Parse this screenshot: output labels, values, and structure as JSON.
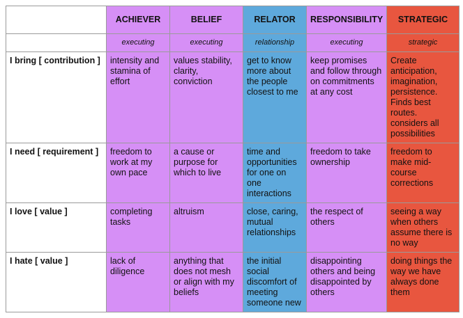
{
  "table": {
    "columns": [
      "ACHIEVER",
      "BELIEF",
      "RELATOR",
      "RESPONSIBILITY",
      "STRATEGIC"
    ],
    "categories": [
      "executing",
      "executing",
      "relationship",
      "executing",
      "strategic"
    ],
    "rows": [
      {
        "label": "I bring [ contribution ]",
        "cells": [
          "intensity and stamina of effort",
          "values stability, clarity, conviction",
          "get to know more about the people closest to me",
          "keep promises and follow through on commitments at any cost",
          "Create anticipation, imagination, persistence. Finds best routes. considers all possibilities"
        ]
      },
      {
        "label": "I need [ requirement ]",
        "cells": [
          "freedom to work at my own pace",
          "a cause or purpose for which to live",
          "time and opportunities for one on one interactions",
          "freedom to take ownership",
          "freedom to make mid-course corrections"
        ]
      },
      {
        "label": "I love [ value ]",
        "cells": [
          "completing tasks",
          "altruism",
          "close, caring, mutual relationships",
          "the respect of others",
          "seeing a way when others assume there is no way"
        ]
      },
      {
        "label": "I hate [ value ]",
        "cells": [
          "lack of diligence",
          "anything that does not mesh or align with my beliefs",
          "the initial social discomfort of meeting someone new",
          "disappointing others and being disappointed by others",
          "doing things the way we have always done them"
        ]
      }
    ]
  }
}
